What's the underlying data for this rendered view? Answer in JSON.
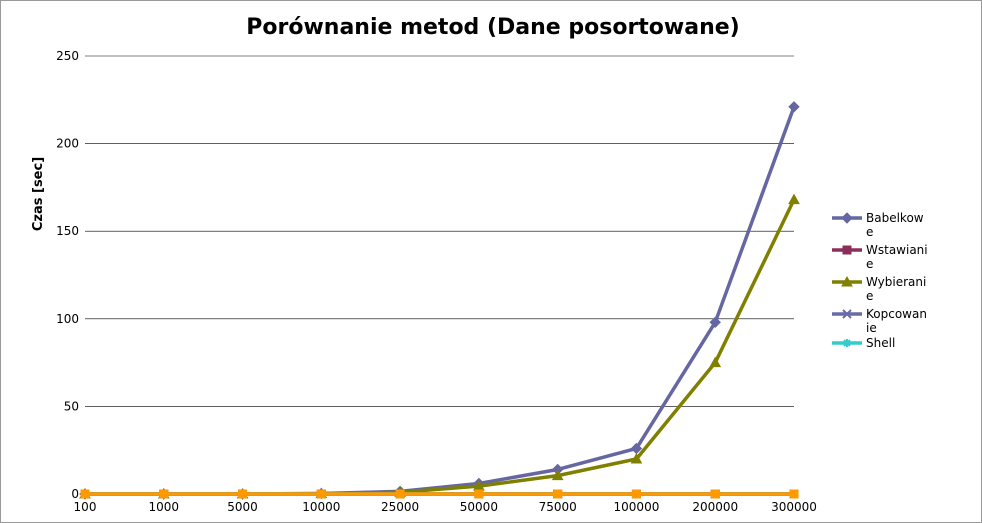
{
  "chart_data": {
    "type": "line",
    "title": "Porównanie metod (Dane posortowane)",
    "y_label": "Czas [sec]",
    "categories": [
      "100",
      "1000",
      "5000",
      "10000",
      "25000",
      "50000",
      "75000",
      "100000",
      "200000",
      "300000"
    ],
    "ylim": [
      0,
      250
    ],
    "yticks": [
      0,
      50,
      100,
      150,
      200,
      250
    ],
    "grid": true,
    "series": [
      {
        "name": "Babelkowe",
        "color": "#6666a3",
        "marker": "diamond",
        "values": [
          0,
          0,
          0,
          0.3,
          1.5,
          6,
          14,
          26,
          98,
          221
        ]
      },
      {
        "name": "Wstawianie",
        "color": "#8b2e5a",
        "marker": "square",
        "values": [
          0,
          0,
          0,
          0,
          0,
          0,
          0,
          0,
          0,
          0
        ]
      },
      {
        "name": "Wybieranie",
        "color": "#808000",
        "marker": "triangle",
        "values": [
          0,
          0,
          0,
          0.2,
          1,
          4.5,
          10.5,
          20,
          75,
          168
        ]
      },
      {
        "name": "Kopcowanie",
        "color": "#6a6aa8",
        "marker": "x",
        "values": [
          0,
          0,
          0,
          0,
          0,
          0,
          0,
          0,
          0,
          0
        ]
      },
      {
        "name": "Shell",
        "color": "#33cccc",
        "marker": "star",
        "values": [
          0,
          0,
          0,
          0,
          0,
          0,
          0,
          0,
          0,
          0
        ]
      },
      {
        "color": "#ff9900",
        "marker": "square",
        "values": [
          0,
          0,
          0,
          0,
          0,
          0,
          0,
          0,
          0,
          0
        ]
      }
    ]
  }
}
